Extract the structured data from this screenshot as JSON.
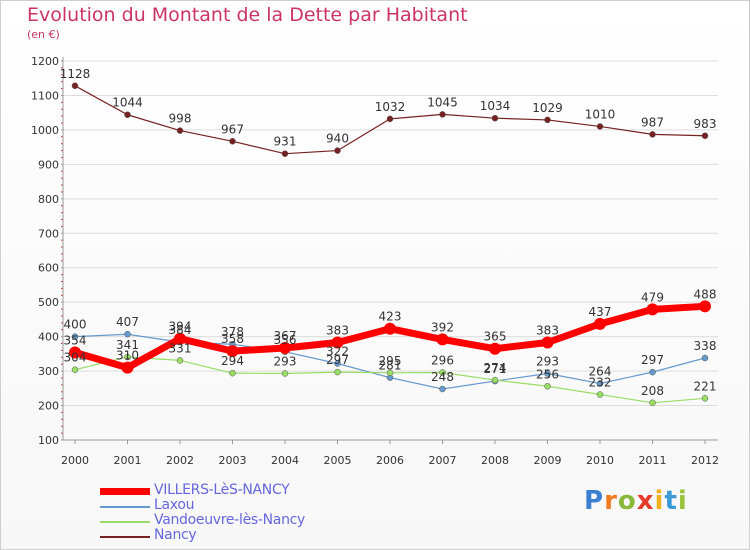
{
  "header": {
    "title": "Evolution du Montant de la Dette par Habitant",
    "subtitle": "(en €)"
  },
  "logo": {
    "letters": [
      "P",
      "r",
      "o",
      "x",
      "i",
      "t",
      "i"
    ]
  },
  "chart_data": {
    "type": "line",
    "title": "Evolution du Montant de la Dette par Habitant",
    "subtitle": "(en €)",
    "categories": [
      "2000",
      "2001",
      "2002",
      "2003",
      "2004",
      "2005",
      "2006",
      "2007",
      "2008",
      "2009",
      "2010",
      "2011",
      "2012"
    ],
    "ylim": [
      100,
      1200
    ],
    "yticks": [
      100,
      200,
      300,
      400,
      500,
      600,
      700,
      800,
      900,
      1000,
      1100,
      1200
    ],
    "grid": true,
    "legend_position": "bottom-left",
    "series": [
      {
        "name": "VILLERS-LèS-NANCY",
        "color": "#ff0000",
        "values": [
          354,
          310,
          394,
          358,
          367,
          383,
          423,
          392,
          365,
          383,
          437,
          479,
          488
        ]
      },
      {
        "name": "Laxou",
        "color": "#6699cc",
        "values": [
          400,
          407,
          384,
          378,
          356,
          322,
          281,
          248,
          271,
          293,
          264,
          297,
          338
        ]
      },
      {
        "name": "Vandoeuvre-lès-Nancy",
        "color": "#99dd66",
        "values": [
          304,
          341,
          331,
          294,
          293,
          297,
          295,
          296,
          274,
          256,
          232,
          208,
          221
        ]
      },
      {
        "name": "Nancy",
        "color": "#772222",
        "values": [
          1128,
          1044,
          998,
          967,
          931,
          940,
          1032,
          1045,
          1034,
          1029,
          1010,
          987,
          983
        ]
      }
    ]
  }
}
